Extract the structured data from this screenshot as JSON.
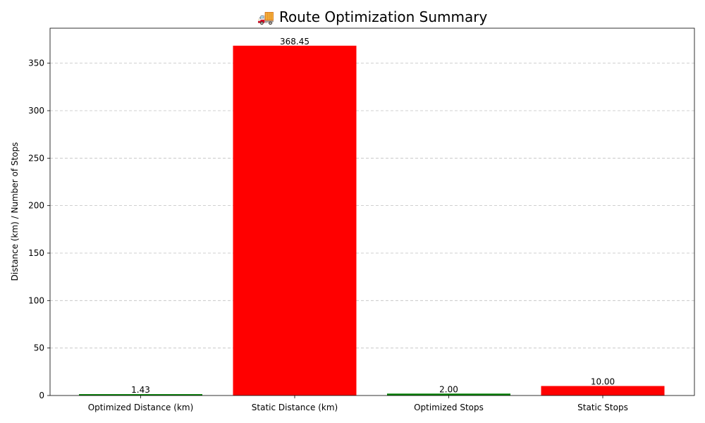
{
  "chart_data": {
    "type": "bar",
    "title": "🚚 Route Optimization Summary",
    "xlabel": "",
    "ylabel": "Distance (km) / Number of Stops",
    "categories": [
      "Optimized Distance (km)",
      "Static Distance (km)",
      "Optimized Stops",
      "Static Stops"
    ],
    "values": [
      1.43,
      368.45,
      2.0,
      10.0
    ],
    "value_labels": [
      "1.43",
      "368.45",
      "2.00",
      "10.00"
    ],
    "colors": [
      "#008000",
      "#ff0000",
      "#008000",
      "#ff0000"
    ],
    "ylim": [
      0,
      386.87
    ],
    "yticks": [
      0,
      50,
      100,
      150,
      200,
      250,
      300,
      350
    ],
    "grid": "y-dashed",
    "grid_color": "#c0c0c0"
  }
}
